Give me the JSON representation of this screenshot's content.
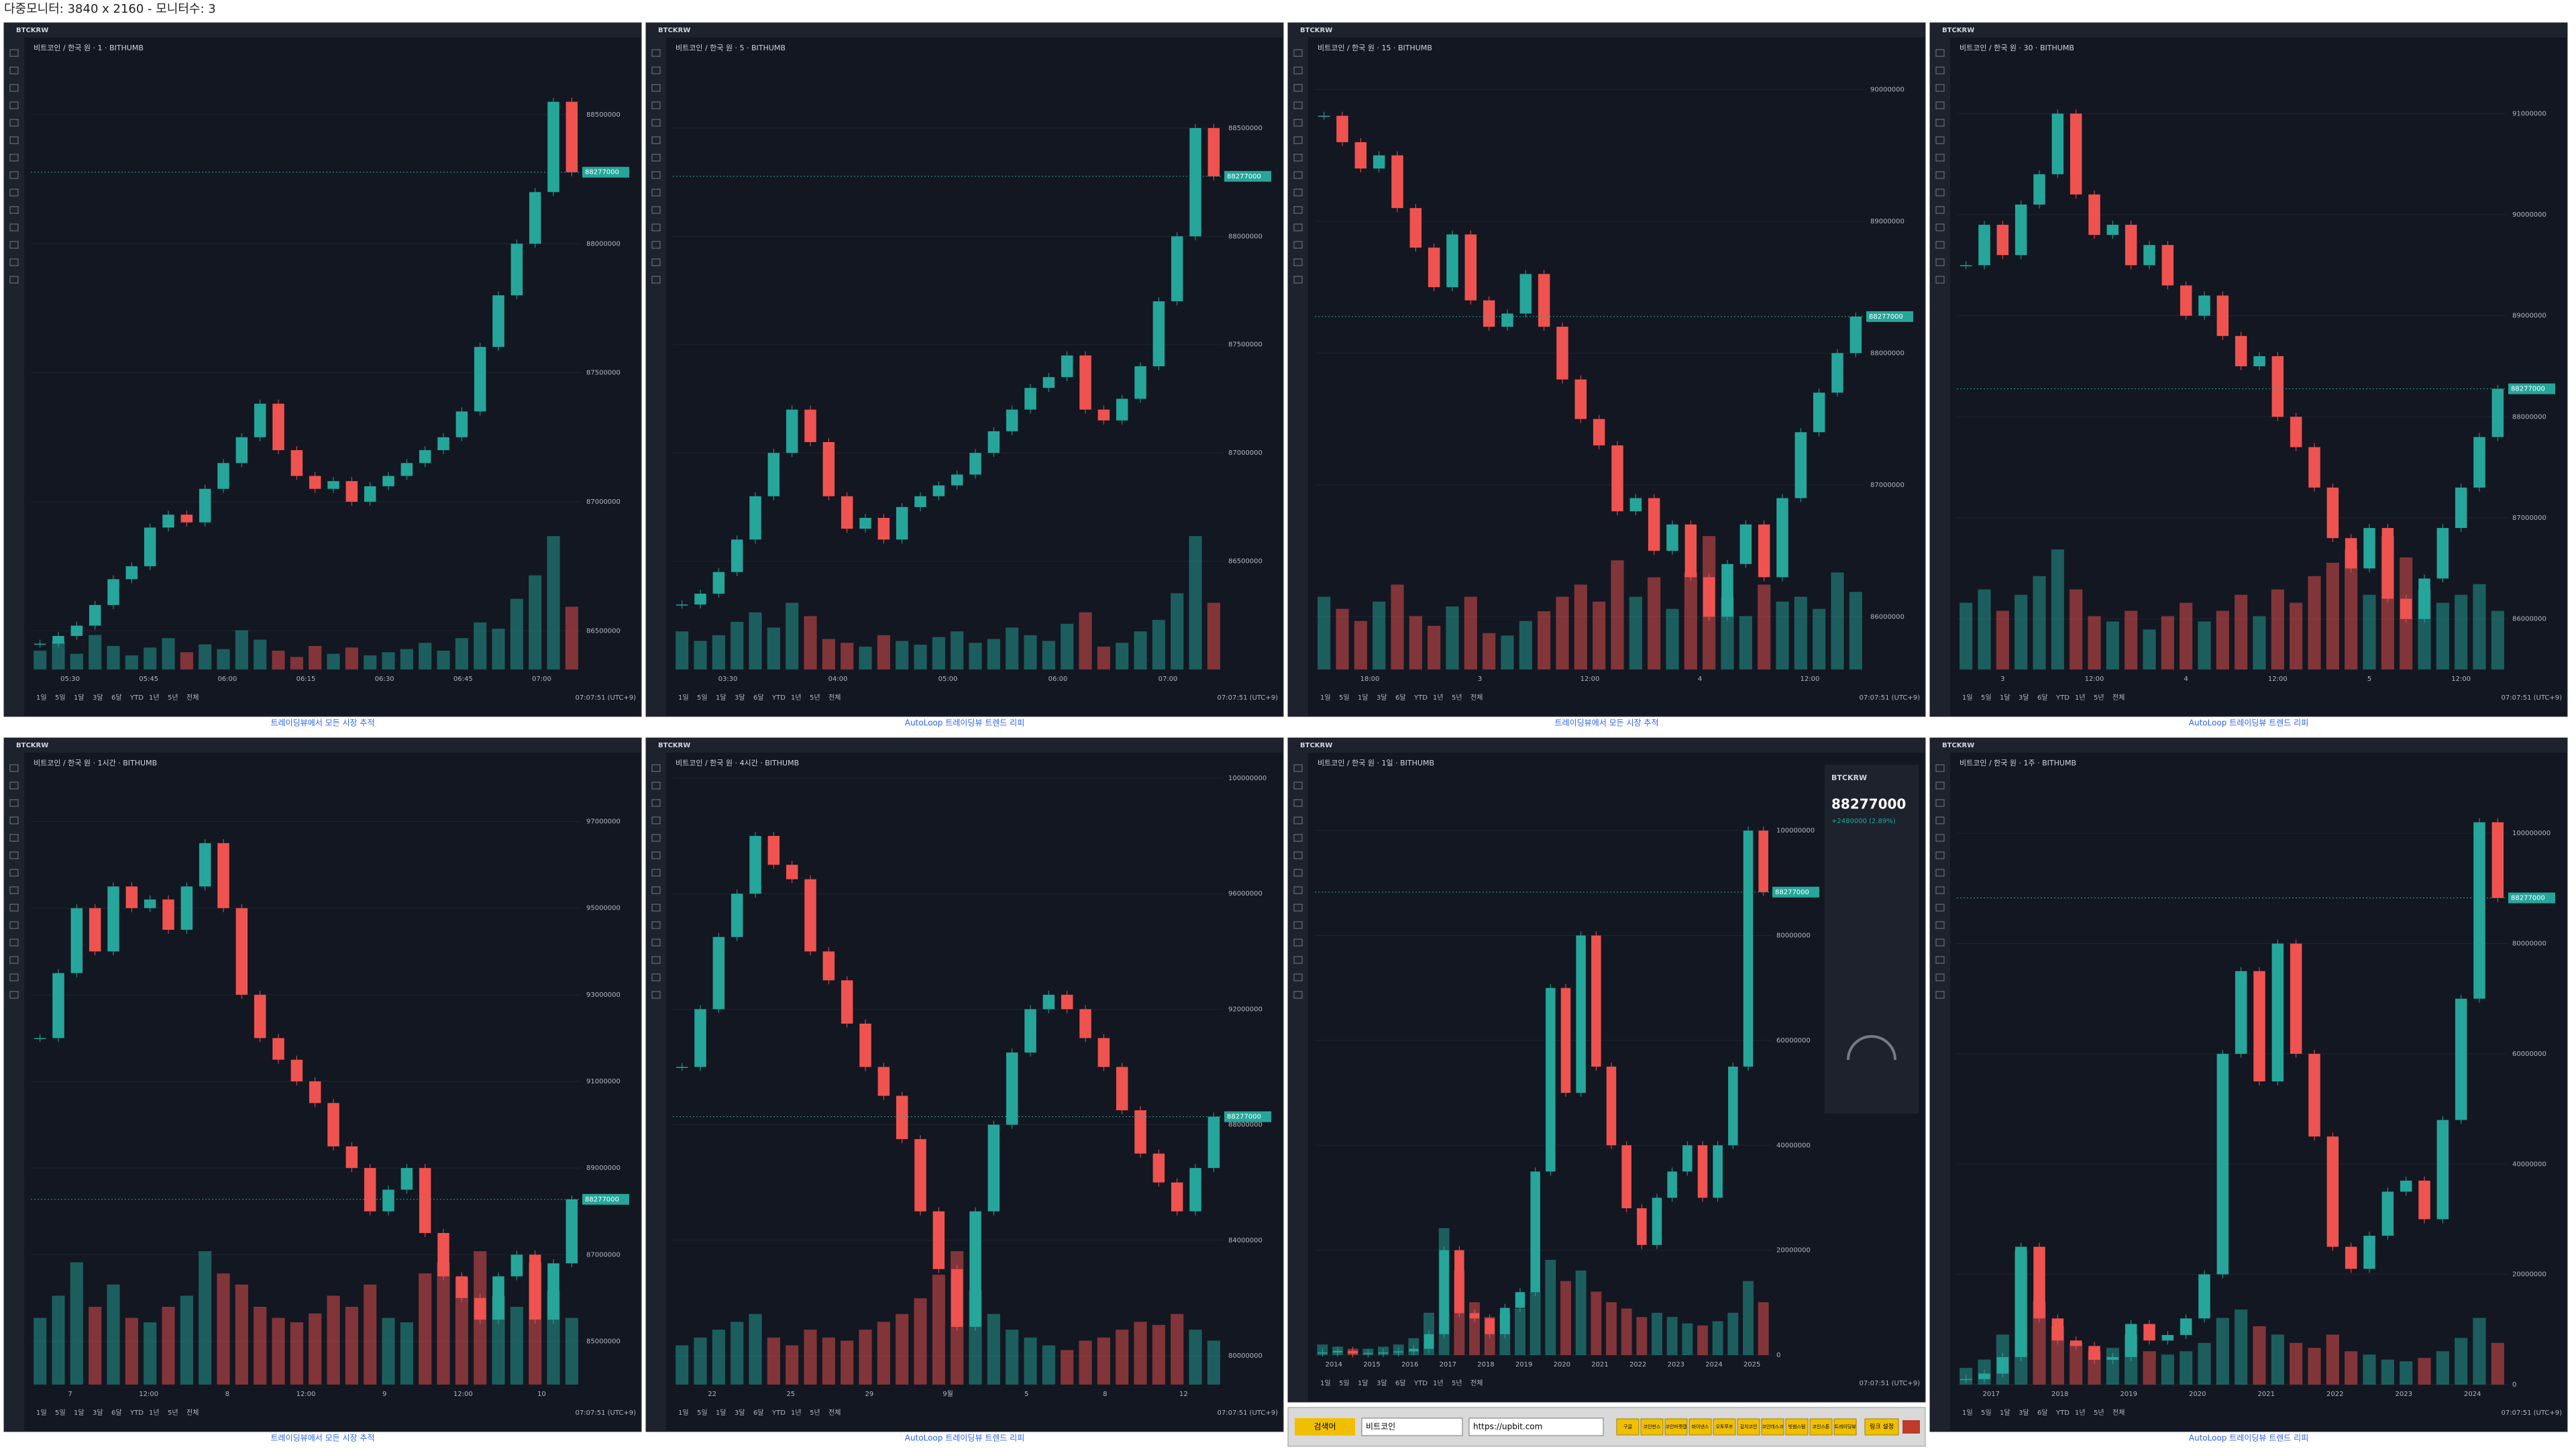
{
  "header": {
    "title": "다중모니터: 3840 x 2160 - 모니터수: 3"
  },
  "range_buttons": [
    "1일",
    "5일",
    "1달",
    "3달",
    "6달",
    "YTD",
    "1년",
    "5년",
    "전체"
  ],
  "clock": "07:07:51 (UTC+9)",
  "panels": [
    {
      "symbol": "BTCKRW",
      "title": "비트코인 / 한국 원 · 1 · BITHUMB",
      "last": 88277000,
      "footer": "트레이딩뷰에서 모든 시장 추적",
      "ylim": [
        86350000,
        88700000
      ],
      "yticks": [
        86500000,
        87000000,
        87500000,
        88000000,
        88500000
      ],
      "xlabels": [
        "05:30",
        "05:45",
        "06:00",
        "06:15",
        "06:30",
        "06:45",
        "07:00"
      ],
      "closes": [
        86450000,
        86480000,
        86520000,
        86600000,
        86700000,
        86750000,
        86900000,
        86950000,
        86920000,
        87050000,
        87150000,
        87250000,
        87380000,
        87200000,
        87100000,
        87050000,
        87080000,
        87000000,
        87060000,
        87100000,
        87150000,
        87200000,
        87250000,
        87350000,
        87600000,
        87800000,
        88000000,
        88200000,
        88550000,
        88277000
      ],
      "volumes": [
        12,
        18,
        10,
        22,
        15,
        9,
        14,
        20,
        11,
        16,
        13,
        25,
        19,
        12,
        8,
        15,
        10,
        14,
        9,
        11,
        13,
        17,
        12,
        20,
        30,
        26,
        45,
        60,
        85,
        40
      ]
    },
    {
      "symbol": "BTCKRW",
      "title": "비트코인 / 한국 원 · 5 · BITHUMB",
      "last": 88277000,
      "footer": "AutoLoop 트레이딩뷰 트렌드 리피",
      "ylim": [
        86000000,
        88800000
      ],
      "yticks": [
        86500000,
        87000000,
        87500000,
        88000000,
        88500000
      ],
      "xlabels": [
        "03:30",
        "04:00",
        "05:00",
        "06:00",
        "07:00"
      ],
      "closes": [
        86300000,
        86350000,
        86450000,
        86600000,
        86800000,
        87000000,
        87200000,
        87050000,
        86800000,
        86650000,
        86700000,
        86600000,
        86750000,
        86800000,
        86850000,
        86900000,
        87000000,
        87100000,
        87200000,
        87300000,
        87350000,
        87450000,
        87200000,
        87150000,
        87250000,
        87400000,
        87700000,
        88000000,
        88500000,
        88277000
      ],
      "volumes": [
        20,
        15,
        18,
        25,
        30,
        22,
        35,
        28,
        16,
        14,
        12,
        18,
        15,
        13,
        17,
        20,
        14,
        16,
        22,
        18,
        15,
        24,
        30,
        12,
        14,
        20,
        26,
        40,
        70,
        35
      ]
    },
    {
      "symbol": "BTCKRW",
      "title": "비트코인 / 한국 원 · 15 · BITHUMB",
      "last": 88277000,
      "footer": "트레이딩뷰에서 모든 시장 추적",
      "ylim": [
        85600000,
        90200000
      ],
      "yticks": [
        86000000,
        87000000,
        88000000,
        89000000,
        90000000
      ],
      "xlabels": [
        "18:00",
        "3",
        "12:00",
        "4",
        "12:00"
      ],
      "closes": [
        89800000,
        89600000,
        89400000,
        89500000,
        89100000,
        88800000,
        88500000,
        88900000,
        88400000,
        88200000,
        88300000,
        88600000,
        88200000,
        87800000,
        87500000,
        87300000,
        86800000,
        86900000,
        86500000,
        86700000,
        86300000,
        86000000,
        86400000,
        86700000,
        86300000,
        86900000,
        87400000,
        87700000,
        88000000,
        88277000
      ],
      "volumes": [
        30,
        25,
        20,
        28,
        35,
        22,
        18,
        26,
        30,
        15,
        14,
        20,
        24,
        30,
        35,
        28,
        45,
        30,
        38,
        25,
        40,
        55,
        30,
        22,
        35,
        28,
        30,
        25,
        40,
        32
      ]
    },
    {
      "symbol": "BTCKRW",
      "title": "비트코인 / 한국 원 · 30 · BITHUMB",
      "last": 88277000,
      "footer": "AutoLoop 트레이딩뷰 트렌드 리피",
      "ylim": [
        85500000,
        91500000
      ],
      "yticks": [
        86000000,
        87000000,
        88000000,
        89000000,
        90000000,
        91000000
      ],
      "xlabels": [
        "3",
        "12:00",
        "4",
        "12:00",
        "5",
        "12:00"
      ],
      "closes": [
        89500000,
        89900000,
        89600000,
        90100000,
        90400000,
        91000000,
        90200000,
        89800000,
        89900000,
        89500000,
        89700000,
        89300000,
        89000000,
        89200000,
        88800000,
        88500000,
        88600000,
        88000000,
        87700000,
        87300000,
        86800000,
        86500000,
        86900000,
        86200000,
        86000000,
        86400000,
        86900000,
        87300000,
        87800000,
        88277000
      ],
      "volumes": [
        25,
        30,
        22,
        28,
        35,
        45,
        30,
        20,
        18,
        22,
        15,
        20,
        25,
        18,
        22,
        28,
        20,
        30,
        25,
        35,
        40,
        45,
        28,
        50,
        42,
        30,
        25,
        28,
        32,
        22
      ]
    },
    {
      "symbol": "BTCKRW",
      "title": "비트코인 / 한국 원 · 1시간 · BITHUMB",
      "last": 88277000,
      "footer": "트레이딩뷰에서 모든 시장 추적",
      "ylim": [
        84000000,
        98000000
      ],
      "yticks": [
        85000000,
        87000000,
        89000000,
        91000000,
        93000000,
        95000000,
        97000000
      ],
      "xlabels": [
        "7",
        "12:00",
        "8",
        "12:00",
        "9",
        "12:00",
        "10"
      ],
      "closes": [
        92000000,
        93500000,
        95000000,
        94000000,
        95500000,
        95000000,
        95200000,
        94500000,
        95500000,
        96500000,
        95000000,
        93000000,
        92000000,
        91500000,
        91000000,
        90500000,
        89500000,
        89000000,
        88000000,
        88500000,
        89000000,
        87500000,
        86500000,
        86000000,
        85500000,
        86500000,
        87000000,
        85500000,
        86800000,
        88277000
      ],
      "volumes": [
        30,
        40,
        55,
        35,
        45,
        30,
        28,
        35,
        40,
        60,
        50,
        45,
        35,
        30,
        28,
        32,
        40,
        35,
        45,
        30,
        28,
        50,
        55,
        48,
        60,
        40,
        35,
        55,
        42,
        30
      ]
    },
    {
      "symbol": "BTCKRW",
      "title": "비트코인 / 한국 원 · 4시간 · BITHUMB",
      "last": 88277000,
      "footer": "AutoLoop 트레이딩뷰 트렌드 리피",
      "ylim": [
        79000000,
        100000000
      ],
      "yticks": [
        80000000,
        84000000,
        88000000,
        92000000,
        96000000,
        100000000
      ],
      "xlabels": [
        "22",
        "25",
        "29",
        "9월",
        "5",
        "8",
        "12"
      ],
      "closes": [
        90000000,
        92000000,
        94500000,
        96000000,
        98000000,
        97000000,
        96500000,
        94000000,
        93000000,
        91500000,
        90000000,
        89000000,
        87500000,
        85000000,
        83000000,
        81000000,
        85000000,
        88000000,
        90500000,
        92000000,
        92500000,
        92000000,
        91000000,
        90000000,
        88500000,
        87000000,
        86000000,
        85000000,
        86500000,
        88277000
      ],
      "volumes": [
        25,
        30,
        35,
        40,
        45,
        30,
        25,
        35,
        30,
        28,
        35,
        40,
        45,
        55,
        70,
        85,
        60,
        45,
        35,
        30,
        25,
        22,
        28,
        30,
        35,
        40,
        38,
        45,
        35,
        28
      ]
    },
    {
      "symbol": "BTCKRW",
      "title": "비트코인 / 한국 원 · 1일 · BITHUMB",
      "last": 88277000,
      "ylim": [
        0,
        110000000
      ],
      "yticks": [
        0,
        20000000,
        40000000,
        60000000,
        80000000,
        100000000
      ],
      "xlabels": [
        "2014",
        "2015",
        "2016",
        "2017",
        "2018",
        "2019",
        "2020",
        "2021",
        "2022",
        "2023",
        "2024",
        "2025"
      ],
      "closes": [
        500000,
        800000,
        300000,
        400000,
        500000,
        700000,
        1200000,
        4000000,
        20000000,
        8000000,
        7000000,
        4000000,
        9000000,
        12000000,
        35000000,
        70000000,
        50000000,
        80000000,
        55000000,
        40000000,
        28000000,
        21000000,
        30000000,
        35000000,
        40000000,
        30000000,
        40000000,
        55000000,
        100000000,
        88277000
      ],
      "volumes": [
        5,
        4,
        3,
        3,
        4,
        5,
        8,
        20,
        60,
        40,
        25,
        18,
        20,
        22,
        30,
        45,
        35,
        40,
        30,
        25,
        22,
        18,
        20,
        18,
        15,
        14,
        16,
        20,
        35,
        25
      ],
      "widget": {
        "symbol": "BTCKRW",
        "price": 88277000,
        "change": "+2480000 (2.89%)"
      }
    },
    {
      "symbol": "BTCKRW",
      "title": "비트코인 / 한국 원 · 1주 · BITHUMB",
      "last": 88277000,
      "footer": "AutoLoop 트레이딩뷰 트렌드 리피",
      "ylim": [
        0,
        110000000
      ],
      "yticks": [
        0,
        20000000,
        40000000,
        60000000,
        80000000,
        100000000
      ],
      "xlabels": [
        "2017",
        "2018",
        "2019",
        "2020",
        "2021",
        "2022",
        "2023",
        "2024"
      ],
      "closes": [
        1000000,
        2000000,
        5000000,
        25000000,
        12000000,
        8000000,
        7000000,
        4500000,
        5000000,
        11000000,
        8000000,
        9000000,
        12000000,
        20000000,
        60000000,
        75000000,
        55000000,
        80000000,
        60000000,
        45000000,
        25000000,
        21000000,
        27000000,
        35000000,
        37000000,
        30000000,
        48000000,
        70000000,
        102000000,
        88277000
      ],
      "volumes": [
        10,
        15,
        30,
        80,
        50,
        35,
        25,
        20,
        22,
        30,
        20,
        18,
        20,
        25,
        40,
        45,
        35,
        30,
        25,
        22,
        30,
        20,
        18,
        15,
        14,
        16,
        20,
        28,
        40,
        25
      ]
    }
  ],
  "toolbar": {
    "label": "검색어",
    "query": "비트코인",
    "url": "https://upbit.com",
    "buttons": [
      "구글",
      "코인판스",
      "코인마켓캡",
      "바이낸스",
      "오토루프",
      "김치코인",
      "코인데스크",
      "빗썸스텀",
      "코인스톤",
      "트레이딩뷰"
    ],
    "settings": "링크 설정"
  }
}
